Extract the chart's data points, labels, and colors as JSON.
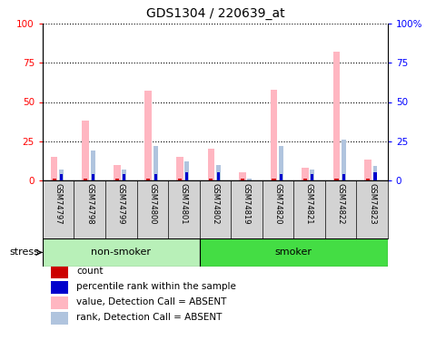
{
  "title": "GDS1304 / 220639_at",
  "samples": [
    "GSM74797",
    "GSM74798",
    "GSM74799",
    "GSM74800",
    "GSM74801",
    "GSM74802",
    "GSM74819",
    "GSM74820",
    "GSM74821",
    "GSM74822",
    "GSM74823"
  ],
  "groups": [
    {
      "label": "non-smoker",
      "indices": [
        0,
        1,
        2,
        3,
        4
      ],
      "color": "#b8f0b8"
    },
    {
      "label": "smoker",
      "indices": [
        5,
        6,
        7,
        8,
        9,
        10
      ],
      "color": "#44dd44"
    }
  ],
  "value_absent": [
    15,
    38,
    10,
    57,
    15,
    20,
    5,
    58,
    8,
    82,
    13
  ],
  "rank_absent": [
    7,
    19,
    7,
    22,
    12,
    10,
    1,
    22,
    7,
    26,
    9
  ],
  "count_val": [
    1,
    1,
    1,
    1,
    1,
    1,
    1,
    1,
    1,
    1,
    1
  ],
  "rank_val": [
    4,
    4,
    4,
    4,
    5,
    5,
    0,
    4,
    4,
    4,
    5
  ],
  "ylim": [
    0,
    100
  ],
  "y_ticks": [
    0,
    25,
    50,
    75,
    100
  ],
  "color_count": "#cc0000",
  "color_rank": "#0000cc",
  "color_value_absent": "#ffb6c1",
  "color_rank_absent": "#b0c4de",
  "title_fontsize": 10,
  "tick_fontsize": 7.5,
  "legend_fontsize": 7.5,
  "sample_fontsize": 6,
  "label_bg": "#d3d3d3"
}
